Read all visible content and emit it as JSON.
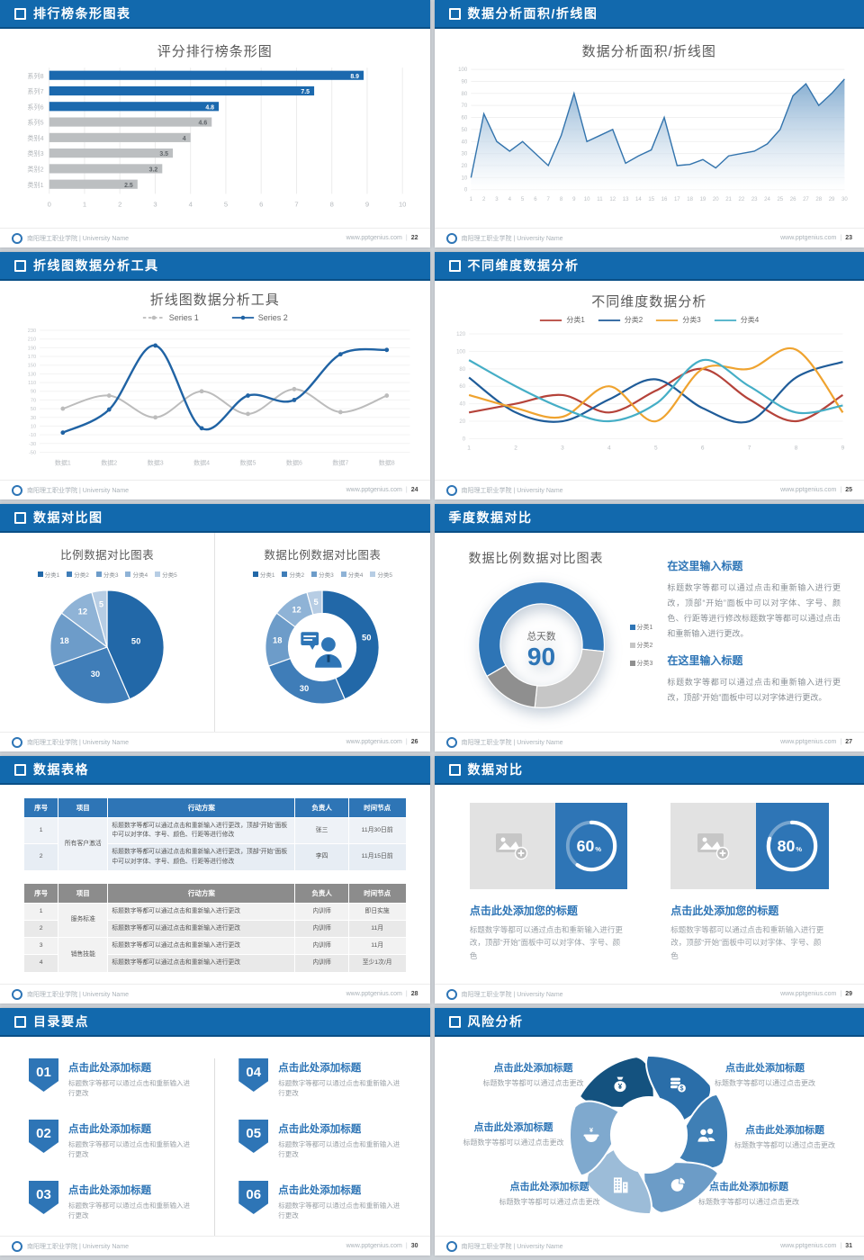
{
  "footer": {
    "org": "南阳理工职业学院 | University Name",
    "site": "www.pptgenius.com"
  },
  "slides": [
    {
      "page": "22",
      "header": "排行榜条形图表",
      "bullet": true
    },
    {
      "page": "23",
      "header": "数据分析面积/折线图",
      "bullet": true
    },
    {
      "page": "24",
      "header": "折线图数据分析工具",
      "bullet": true
    },
    {
      "page": "25",
      "header": "不同维度数据分析",
      "bullet": true
    },
    {
      "page": "26",
      "header": "数据对比图",
      "bullet": true
    },
    {
      "page": "27",
      "header": "季度数据对比",
      "bullet": false,
      "blocks": [
        {
          "heading": "在这里输入标题",
          "body": "标题数字等都可以通过点击和重新输入进行更改，顶部“开始”面板中可以对字体、字号、颜色、行距等进行修改标题数字等都可以通过点击和重新输入进行更改。"
        },
        {
          "heading": "在这里输入标题",
          "body": "标题数字等都可以通过点击和重新输入进行更改，顶部“开始”面板中可以对字体进行更改。"
        }
      ]
    },
    {
      "page": "28",
      "header": "数据表格",
      "bullet": true
    },
    {
      "page": "29",
      "header": "数据对比",
      "bullet": true,
      "cards": [
        {
          "percent": "60",
          "heading": "点击此处添加您的标题",
          "body": "标题数字等都可以通过点击和重新输入进行更改，顶部“开始”面板中可以对字体、字号、颜色"
        },
        {
          "percent": "80",
          "heading": "点击此处添加您的标题",
          "body": "标题数字等都可以通过点击和重新输入进行更改，顶部“开始”面板中可以对字体、字号、颜色"
        }
      ]
    },
    {
      "page": "30",
      "header": "目录要点",
      "bullet": true,
      "items": [
        {
          "num": "01",
          "heading": "点击此处添加标题",
          "body": "标题数字等都可以通过点击和重新输入进行更改"
        },
        {
          "num": "02",
          "heading": "点击此处添加标题",
          "body": "标题数字等都可以通过点击和重新输入进行更改"
        },
        {
          "num": "03",
          "heading": "点击此处添加标题",
          "body": "标题数字等都可以通过点击和重新输入进行更改"
        },
        {
          "num": "04",
          "heading": "点击此处添加标题",
          "body": "标题数字等都可以通过点击和重新输入进行更改"
        },
        {
          "num": "05",
          "heading": "点击此处添加标题",
          "body": "标题数字等都可以通过点击和重新输入进行更改"
        },
        {
          "num": "06",
          "heading": "点击此处添加标题",
          "body": "标题数字等都可以通过点击和重新输入进行更改"
        }
      ]
    },
    {
      "page": "31",
      "header": "风险分析",
      "bullet": true,
      "labels": [
        {
          "heading": "点击此处添加标题",
          "body": "标题数字等都可以通过点击更改"
        },
        {
          "heading": "点击此处添加标题",
          "body": "标题数字等都可以通过点击更改"
        },
        {
          "heading": "点击此处添加标题",
          "body": "标题数字等都可以通过点击更改"
        },
        {
          "heading": "点击此处添加标题",
          "body": "标题数字等都可以通过点击更改"
        },
        {
          "heading": "点击此处添加标题",
          "body": "标题数字等都可以通过点击更改"
        },
        {
          "heading": "点击此处添加标题",
          "body": "标题数字等都可以通过点击更改"
        }
      ],
      "icons": [
        "money-bag-icon",
        "coins-icon",
        "people-icon",
        "pie-chart-icon",
        "building-icon",
        "cash-pot-icon"
      ],
      "blade_colors": [
        "#14527f",
        "#2a6ea9",
        "#3f7fb5",
        "#6c9cc7",
        "#9cbcd8",
        "#7fa9ce"
      ]
    }
  ],
  "chart_data": [
    {
      "id": "ranking-bar",
      "slide": "22",
      "type": "bar",
      "orientation": "horizontal",
      "title": "评分排行榜条形图",
      "categories": [
        "系列8",
        "系列7",
        "系列6",
        "系列5",
        "类别4",
        "类别3",
        "类别2",
        "类别1"
      ],
      "values": [
        8.9,
        7.5,
        4.8,
        4.6,
        4,
        3.5,
        3.2,
        2.5
      ],
      "xlim": [
        0,
        10
      ],
      "xtick": 1,
      "grid": true,
      "highlight_count": 3,
      "highlight_color": "#1b69ae",
      "bar_color": "#bcbfc1"
    },
    {
      "id": "area-line",
      "slide": "23",
      "type": "area",
      "title": "数据分析面积/折线图",
      "x": [
        1,
        2,
        3,
        4,
        5,
        6,
        7,
        8,
        9,
        10,
        11,
        12,
        13,
        14,
        15,
        16,
        17,
        18,
        19,
        20,
        21,
        22,
        23,
        24,
        25,
        26,
        27,
        28,
        29,
        30
      ],
      "values": [
        10,
        63,
        40,
        32,
        40,
        30,
        20,
        45,
        80,
        40,
        45,
        50,
        22,
        28,
        33,
        60,
        20,
        21,
        25,
        18,
        28,
        30,
        32,
        38,
        50,
        78,
        88,
        70,
        80,
        92
      ],
      "ylim": [
        0,
        100
      ],
      "ytick": 10,
      "grid": true,
      "line_color": "#3374ad",
      "fill_top": "#76a3cb"
    },
    {
      "id": "two-series-line",
      "slide": "24",
      "type": "line",
      "title": "折线图数据分析工具",
      "categories": [
        "数据1",
        "数据2",
        "数据3",
        "数据4",
        "数据5",
        "数据6",
        "数据7",
        "数据8"
      ],
      "ylim": [
        -50,
        230
      ],
      "ytick": 20,
      "grid": true,
      "legend_position": "top",
      "series": [
        {
          "name": "Series 1",
          "color": "#bcbcbc",
          "dashed": true,
          "marker": true,
          "values": [
            50,
            80,
            30,
            90,
            38,
            95,
            42,
            80
          ]
        },
        {
          "name": "Series 2",
          "color": "#2063a4",
          "dashed": false,
          "marker": true,
          "values": [
            -5,
            48,
            195,
            5,
            80,
            70,
            175,
            185
          ]
        }
      ]
    },
    {
      "id": "four-series-line",
      "slide": "25",
      "type": "line",
      "title": "不同维度数据分析",
      "x": [
        1,
        2,
        3,
        4,
        5,
        6,
        7,
        8,
        9
      ],
      "ylim": [
        0,
        120
      ],
      "ytick": 20,
      "grid": true,
      "legend_position": "top",
      "series": [
        {
          "name": "分类1",
          "color": "#b5433a",
          "values": [
            30,
            40,
            50,
            30,
            55,
            80,
            45,
            20,
            50
          ]
        },
        {
          "name": "分类2",
          "color": "#1f5c99",
          "values": [
            70,
            30,
            20,
            45,
            68,
            35,
            20,
            70,
            88
          ]
        },
        {
          "name": "分类3",
          "color": "#efa32f",
          "values": [
            50,
            35,
            25,
            60,
            20,
            80,
            80,
            102,
            30
          ]
        },
        {
          "name": "分类4",
          "color": "#45aec6",
          "values": [
            90,
            60,
            35,
            20,
            40,
            90,
            60,
            30,
            38
          ]
        }
      ]
    },
    {
      "id": "proportion-pie",
      "slide": "26",
      "type": "pie",
      "title": "比例数据对比图表",
      "labels": [
        "分类1",
        "分类2",
        "分类3",
        "分类4",
        "分类5"
      ],
      "values": [
        50,
        30,
        18,
        12,
        5
      ],
      "colors": [
        "#2268a8",
        "#3f7db8",
        "#6d9cc9",
        "#8fb3d6",
        "#b7cde4"
      ]
    },
    {
      "id": "proportion-donut",
      "slide": "26",
      "type": "donut",
      "title": "数据比例数据对比图表",
      "labels": [
        "分类1",
        "分类2",
        "分类3",
        "分类4",
        "分类5"
      ],
      "values": [
        50,
        30,
        18,
        12,
        5
      ],
      "colors": [
        "#2268a8",
        "#3f7db8",
        "#6d9cc9",
        "#8fb3d6",
        "#b7cde4"
      ],
      "center_icon": "person-speech-icon"
    },
    {
      "id": "days-donut",
      "slide": "27",
      "type": "donut",
      "title": "数据比例数据对比图表",
      "labels": [
        "分类1",
        "分类2",
        "分类3"
      ],
      "values": [
        60,
        25,
        15
      ],
      "colors": [
        "#2e75b6",
        "#c6c6c6",
        "#8f8f8f"
      ],
      "start_angle": 240,
      "center_label": "总天数",
      "center_value": "90"
    },
    {
      "id": "progress-left",
      "slide": "29",
      "type": "donut",
      "values": [
        60,
        40
      ],
      "center_value": "60",
      "unit": "%"
    },
    {
      "id": "progress-right",
      "slide": "29",
      "type": "donut",
      "values": [
        80,
        20
      ],
      "center_value": "80",
      "unit": "%"
    }
  ],
  "tables": [
    {
      "header_bg": "#2e75b6",
      "zebra": [
        "#eef2f7",
        "#e7edf4"
      ],
      "headers": [
        "序号",
        "项目",
        "行动方案",
        "负责人",
        "时间节点"
      ],
      "groups": [
        {
          "project": "所有客户激活",
          "rows": [
            [
              "1",
              "标题数字等都可以通过点击和重新输入进行更改，顶部“开始”面板中可以对字体、字号、颜色、行距等进行修改",
              "张三",
              "11月30日前"
            ],
            [
              "2",
              "标题数字等都可以通过点击和重新输入进行更改，顶部“开始”面板中可以对字体、字号、颜色、行距等进行修改",
              "李四",
              "11月15日前"
            ]
          ]
        }
      ]
    },
    {
      "header_bg": "#8c8c8c",
      "zebra": [
        "#f2f2f2",
        "#e9e9e9"
      ],
      "headers": [
        "序号",
        "项目",
        "行动方案",
        "负责人",
        "时间节点"
      ],
      "groups": [
        {
          "project": "服务标准",
          "rows": [
            [
              "1",
              "标题数字等都可以通过点击和重新输入进行更改",
              "内训师",
              "即日实施"
            ],
            [
              "2",
              "标题数字等都可以通过点击和重新输入进行更改",
              "内训师",
              "11月"
            ]
          ]
        },
        {
          "project": "销售技能",
          "rows": [
            [
              "3",
              "标题数字等都可以通过点击和重新输入进行更改",
              "内训师",
              "11月"
            ],
            [
              "4",
              "标题数字等都可以通过点击和重新输入进行更改",
              "内训师",
              "至少1次/月"
            ]
          ]
        }
      ]
    }
  ]
}
